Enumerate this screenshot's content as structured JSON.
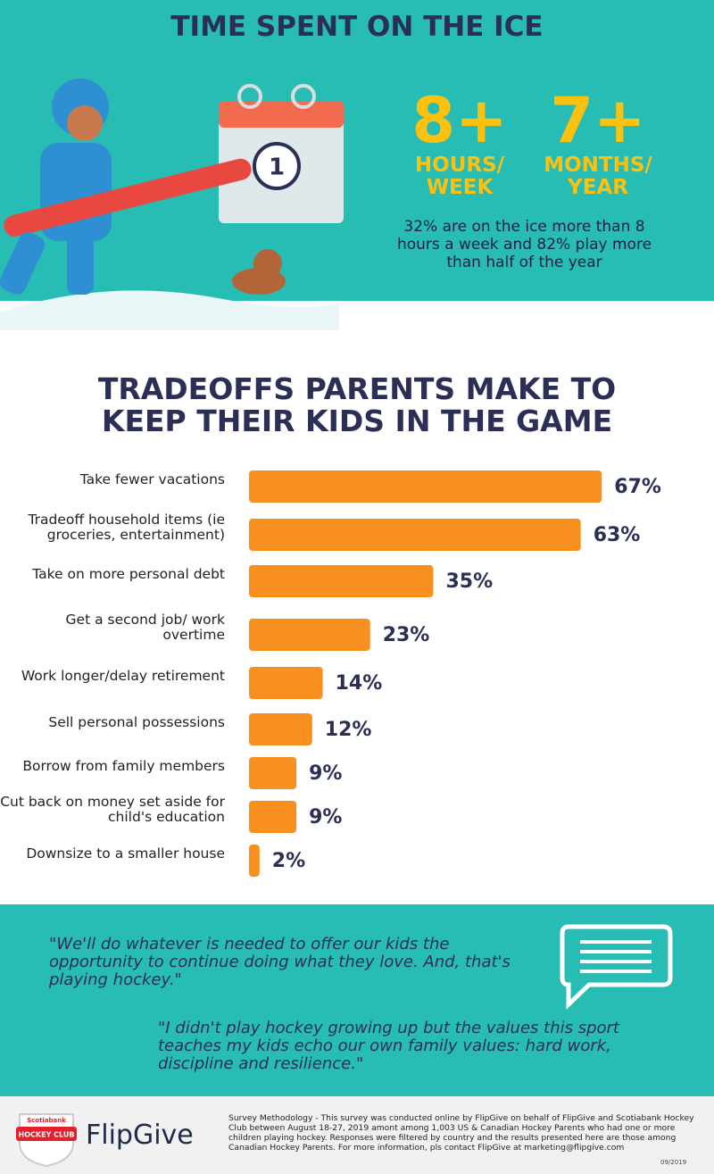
{
  "header": {
    "title": "TIME SPENT ON THE ICE"
  },
  "stats": [
    {
      "number": "8+",
      "unit": "HOURS/ WEEK"
    },
    {
      "number": "7+",
      "unit": "MONTHS/ YEAR"
    }
  ],
  "stats_note": "32% are on the ice more than 8 hours a week and 82% play more than half of the year",
  "calendar_day": "1",
  "chart_data": {
    "type": "bar",
    "orientation": "horizontal",
    "title": "TRADEOFFS PARENTS MAKE TO KEEP THEIR KIDS IN THE GAME",
    "categories": [
      "Take fewer vacations",
      "Tradeoff household items (ie groceries, entertainment)",
      "Take on more personal debt",
      "Get a second job/ work overtime",
      "Work longer/delay retirement",
      "Sell personal possessions",
      "Borrow from family members",
      "Cut back on money set aside for child's education",
      "Downsize to a smaller house"
    ],
    "values": [
      67,
      63,
      35,
      23,
      14,
      12,
      9,
      9,
      2
    ],
    "value_labels": [
      "67%",
      "63%",
      "35%",
      "23%",
      "14%",
      "12%",
      "9%",
      "9%",
      "2%"
    ],
    "color": "#f7901e"
  },
  "quotes": [
    "\"We'll do whatever is needed to offer our kids the opportunity to continue doing what they love. And, that's playing hockey.\"",
    "\"I didn't play hockey growing up but the values this sport teaches my kids echo our own family values: hard work, discipline and resilience.\""
  ],
  "footer": {
    "badge_top": "Scotiabank",
    "badge": "HOCKEY CLUB",
    "brand": "FlipGive",
    "methodology": "Survey Methodology - This survey was conducted online by FlipGive on behalf of FlipGive and Scotiabank Hockey Club between August 18-27, 2019 amont among 1,003 US & Canadian Hockey Parents who had one or more children playing hockey. Responses were filtered by country and the results presented here are those among Canadian Hockey Parents.  For more information, pls contact FlipGive at marketing@flipgive.com",
    "date": "09/2019"
  }
}
